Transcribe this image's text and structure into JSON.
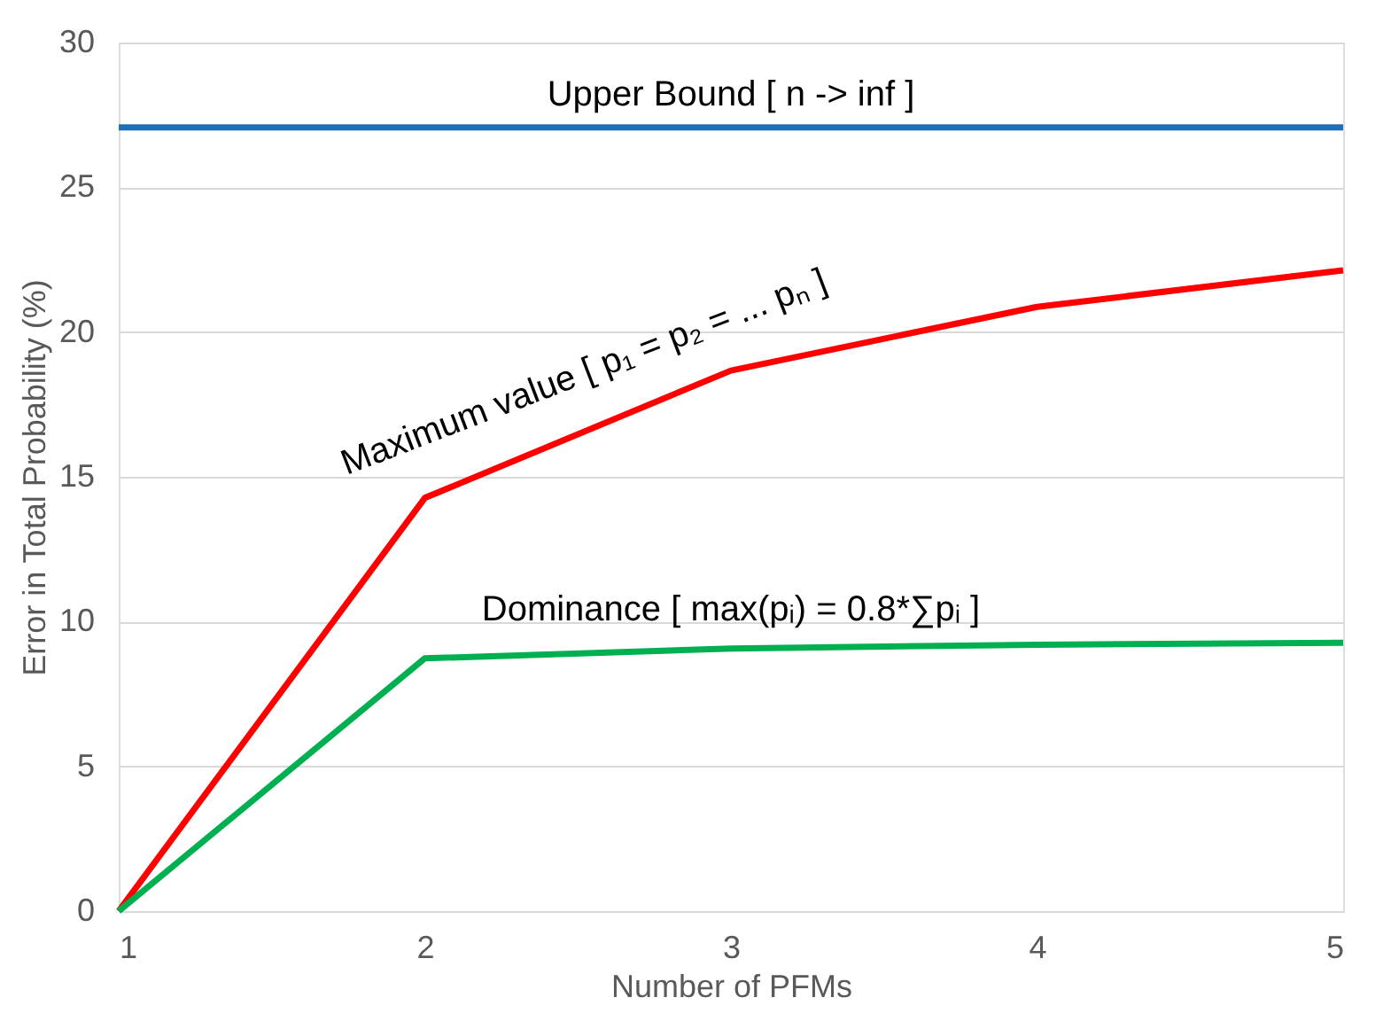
{
  "chart_data": {
    "type": "line",
    "xlabel": "Number of PFMs",
    "ylabel": "Error in Total Probability (%)",
    "x": [
      1,
      2,
      3,
      4,
      5
    ],
    "series": [
      {
        "color": "#1f6fb5",
        "values": [
          27.07,
          27.07,
          27.07,
          27.07,
          27.07
        ]
      },
      {
        "color": "#ff0000",
        "values": [
          0,
          14.27,
          18.67,
          20.87,
          22.13
        ]
      },
      {
        "color": "#00b050",
        "values": [
          0,
          8.73,
          9.07,
          9.2,
          9.27
        ]
      }
    ],
    "annotations": [
      "Upper Bound [ n -> inf ]",
      "Maximum value [ p₁ = p₂ = ... pₙ ]",
      "Dominance [ max(pᵢ) = 0.8*∑pᵢ ]"
    ],
    "xlim": [
      1,
      5
    ],
    "xticks": [
      1,
      2,
      3,
      4,
      5
    ],
    "ylim": [
      0,
      30
    ],
    "yticks": [
      0,
      5,
      10,
      15,
      20,
      25,
      30
    ],
    "grid": "y",
    "marker": "none",
    "line_style": "solid"
  }
}
